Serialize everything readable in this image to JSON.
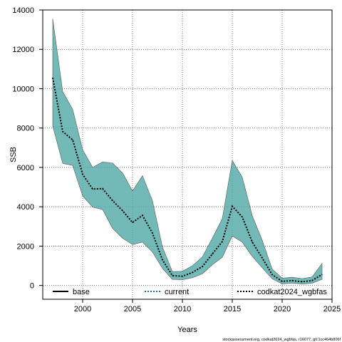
{
  "chart_data": {
    "type": "line",
    "xlabel": "Years",
    "ylabel": "SSB",
    "xlim": [
      1996,
      2025
    ],
    "ylim": [
      -700,
      14000
    ],
    "x_ticks": [
      2000,
      2005,
      2010,
      2015,
      2020,
      2025
    ],
    "y_ticks": [
      0,
      2000,
      4000,
      6000,
      8000,
      10000,
      12000,
      14000
    ],
    "grid": true,
    "legend_position": "bottom",
    "band_color": "#4fa8a5",
    "years": [
      1997,
      1998,
      1999,
      2000,
      2001,
      2002,
      2003,
      2004,
      2005,
      2006,
      2007,
      2008,
      2009,
      2010,
      2011,
      2012,
      2013,
      2014,
      2015,
      2016,
      2017,
      2018,
      2019,
      2020,
      2021,
      2022,
      2023,
      2024
    ],
    "upper": [
      13550,
      9850,
      8950,
      6900,
      6000,
      6280,
      6220,
      5720,
      4800,
      5580,
      4300,
      1950,
      700,
      720,
      1000,
      1450,
      2400,
      3400,
      6350,
      5500,
      3550,
      2300,
      830,
      370,
      420,
      350,
      430,
      1120
    ],
    "lower": [
      8100,
      6200,
      6100,
      4550,
      3980,
      3860,
      2900,
      2400,
      2080,
      2200,
      1700,
      870,
      300,
      290,
      390,
      590,
      1050,
      1430,
      2520,
      2200,
      1480,
      900,
      340,
      80,
      120,
      70,
      110,
      310
    ],
    "series": [
      {
        "name": "base",
        "color": "#000000",
        "style": "solid",
        "values": []
      },
      {
        "name": "current",
        "color": "#1f6f9f",
        "style": "dotted",
        "values": []
      },
      {
        "name": "codkat2024_wgbfas",
        "color": "#000000",
        "style": "dotted",
        "values": [
          10550,
          7820,
          7400,
          5650,
          4900,
          4920,
          4310,
          3800,
          3200,
          3560,
          2660,
          1300,
          500,
          470,
          660,
          960,
          1600,
          2230,
          4020,
          3480,
          2210,
          1400,
          550,
          210,
          250,
          190,
          250,
          560
        ]
      }
    ]
  },
  "watermark": "stockassessment.org, codkat2024_wgbfas, r16077, git:1cc464b806f"
}
